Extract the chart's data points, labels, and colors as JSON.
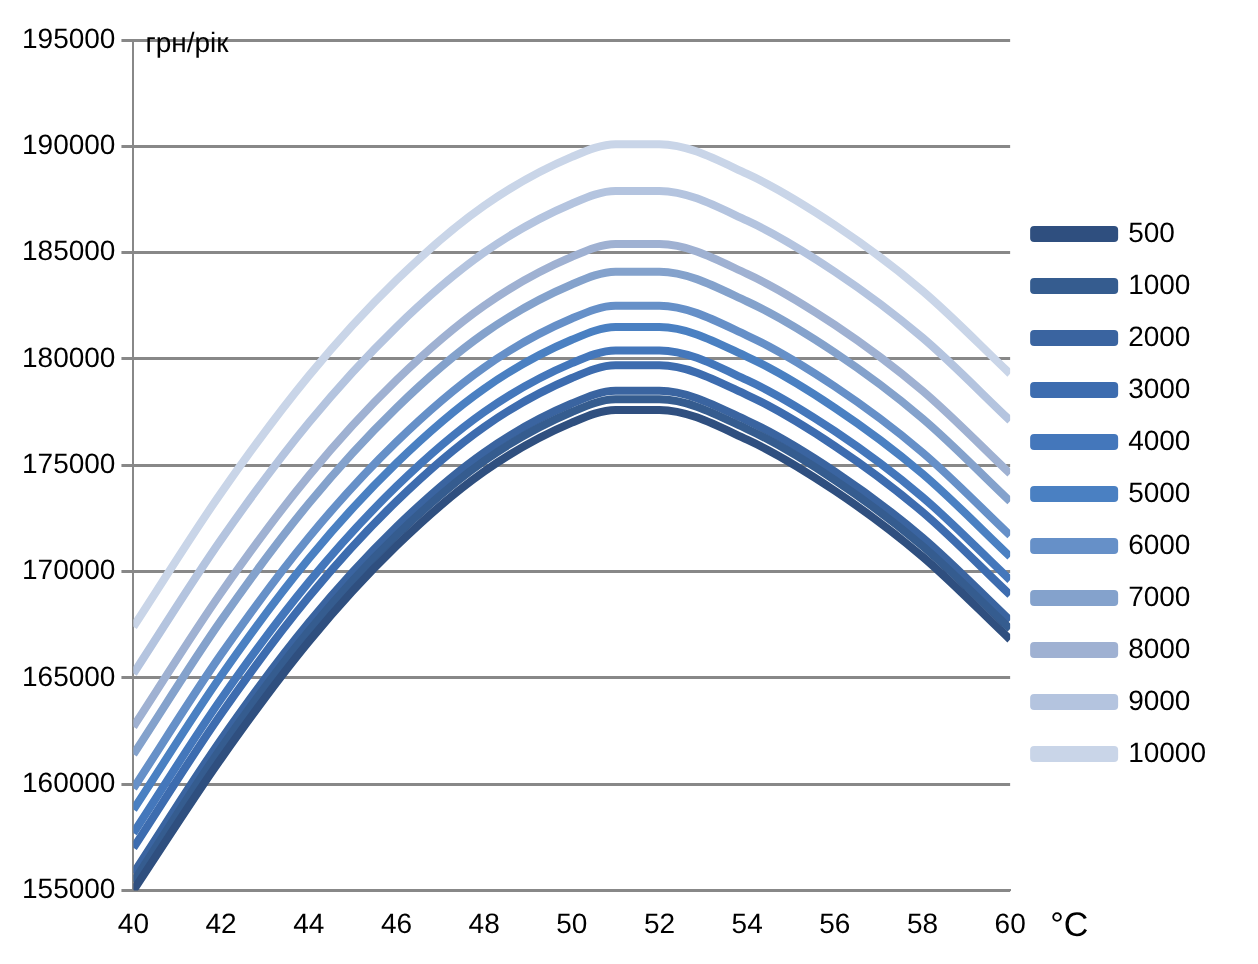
{
  "chart_data": {
    "type": "line",
    "xlabel": "°C",
    "ylabel": "грн/рік",
    "x": [
      40,
      42,
      44,
      46,
      48,
      50,
      51,
      52,
      54,
      56,
      58,
      60
    ],
    "xlim": [
      40,
      60
    ],
    "xticks": [
      40,
      42,
      44,
      46,
      48,
      50,
      52,
      54,
      56,
      58,
      60
    ],
    "ylim": [
      155000,
      195000
    ],
    "yticks": [
      155000,
      160000,
      165000,
      170000,
      175000,
      180000,
      185000,
      190000,
      195000
    ],
    "grid": "y",
    "legend": "right",
    "marker": "none",
    "line_style": "solid",
    "series": [
      {
        "name": "500",
        "color": "#2f4f7f",
        "values": [
          155000,
          161200,
          166700,
          171200,
          174700,
          177000,
          177600,
          177600,
          176200,
          173800,
          170700,
          166800
        ]
      },
      {
        "name": "1000",
        "color": "#355c8f",
        "values": [
          155400,
          161700,
          167200,
          171700,
          175200,
          177500,
          178100,
          178100,
          176700,
          174300,
          171200,
          167300
        ]
      },
      {
        "name": "2000",
        "color": "#3a64a0",
        "values": [
          155800,
          162100,
          167600,
          172100,
          175600,
          177900,
          178500,
          178500,
          177100,
          174700,
          171600,
          167700
        ]
      },
      {
        "name": "3000",
        "color": "#3d6caf",
        "values": [
          157000,
          163300,
          168800,
          173300,
          176800,
          179100,
          179700,
          179700,
          178300,
          175900,
          172800,
          168900
        ]
      },
      {
        "name": "4000",
        "color": "#4477bb",
        "values": [
          157700,
          164000,
          169500,
          174000,
          177500,
          179800,
          180400,
          180400,
          179000,
          176600,
          173500,
          169600
        ]
      },
      {
        "name": "5000",
        "color": "#4a80c2",
        "values": [
          158800,
          165100,
          170600,
          175100,
          178600,
          180900,
          181500,
          181500,
          180100,
          177700,
          174600,
          170700
        ]
      },
      {
        "name": "6000",
        "color": "#6690c8",
        "values": [
          159800,
          166100,
          171600,
          176100,
          179600,
          181900,
          182500,
          182500,
          181100,
          178700,
          175600,
          171700
        ]
      },
      {
        "name": "7000",
        "color": "#84a2cc",
        "values": [
          161400,
          167700,
          173200,
          177700,
          181200,
          183500,
          184100,
          184100,
          182700,
          180300,
          177200,
          173300
        ]
      },
      {
        "name": "8000",
        "color": "#9fb1d2",
        "values": [
          162700,
          169000,
          174500,
          179000,
          182500,
          184800,
          185400,
          185400,
          184000,
          181600,
          178500,
          174600
        ]
      },
      {
        "name": "9000",
        "color": "#b4c4df",
        "values": [
          165200,
          171500,
          177000,
          181500,
          185000,
          187300,
          187900,
          187900,
          186500,
          184100,
          181000,
          177100
        ]
      },
      {
        "name": "10000",
        "color": "#c9d5e8",
        "values": [
          167400,
          173700,
          179200,
          183700,
          187200,
          189500,
          190100,
          190100,
          188700,
          186300,
          183200,
          179300
        ]
      }
    ]
  }
}
